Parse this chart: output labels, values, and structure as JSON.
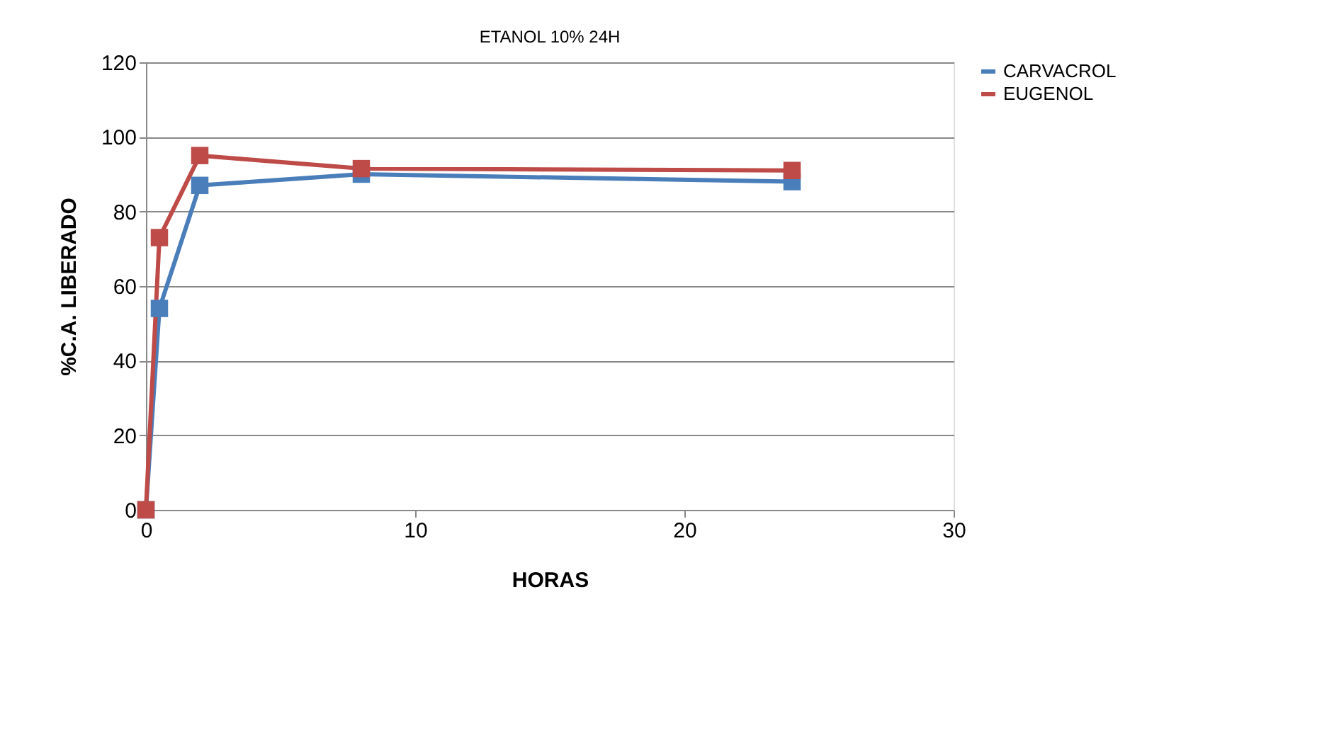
{
  "chart_data": {
    "type": "line",
    "title": "ETANOL 10% 24H",
    "xlabel": "HORAS",
    "ylabel": "%C.A. LIBERADO",
    "x": [
      0,
      0.5,
      2,
      8,
      24
    ],
    "series": [
      {
        "name": "CARVACROL",
        "color": "#4a7ebb",
        "values": [
          0,
          54,
          87,
          90,
          88
        ]
      },
      {
        "name": "EUGENOL",
        "color": "#be4b48",
        "values": [
          0,
          73,
          95,
          91.5,
          91
        ]
      }
    ],
    "xlim": [
      0,
      30
    ],
    "xticks": [
      0,
      10,
      20,
      30
    ],
    "ylim": [
      0,
      120
    ],
    "yticks": [
      0,
      20,
      40,
      60,
      80,
      100,
      120
    ],
    "grid": "y",
    "legend": "right",
    "marker": "square",
    "line_style": "solid"
  }
}
